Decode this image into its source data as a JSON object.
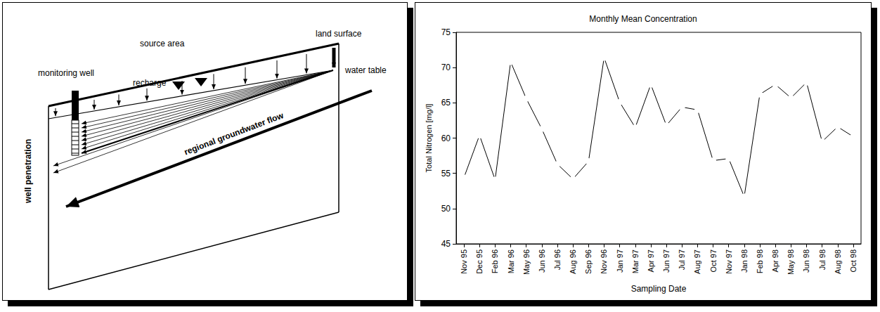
{
  "diagram": {
    "labels": {
      "source_area": "source area",
      "land_surface": "land surface",
      "monitoring_well": "monitoring well",
      "recharge": "recharge",
      "water_table": "water table",
      "well_penetration": "well penetration",
      "regional_flow": "regional groundwater flow"
    }
  },
  "chart_data": {
    "type": "line",
    "title": "Monthly Mean Concentration",
    "x_label": "Sampling Date",
    "y_label": "Total Nitrogen [mg/l]",
    "categories": [
      "Nov 95",
      "Dec 95",
      "Feb 96",
      "Mar 96",
      "May 96",
      "Jun 96",
      "Jul 96",
      "Aug 96",
      "Sep 96",
      "Nov 96",
      "Jan 97",
      "Mar 97",
      "Apr 97",
      "Jun 97",
      "Jul 97",
      "Aug 97",
      "Oct 97",
      "Nov 97",
      "Jan 98",
      "Feb 98",
      "Apr 98",
      "May 98",
      "Jun 98",
      "Jul 98",
      "Aug 98",
      "Oct 98"
    ],
    "values": [
      54.4,
      60.4,
      54.1,
      70.8,
      65.6,
      61.3,
      56.3,
      54.2,
      56.7,
      71.4,
      65.1,
      61.5,
      67.6,
      61.8,
      64.4,
      64.0,
      56.8,
      57.1,
      51.7,
      66.2,
      67.6,
      65.7,
      67.9,
      59.5,
      61.6,
      60.2
    ],
    "color": "#000000",
    "marker": "circle",
    "ylim": [
      45,
      75
    ],
    "yticks": [
      45,
      50,
      55,
      60,
      65,
      70,
      75
    ],
    "grid": false
  }
}
